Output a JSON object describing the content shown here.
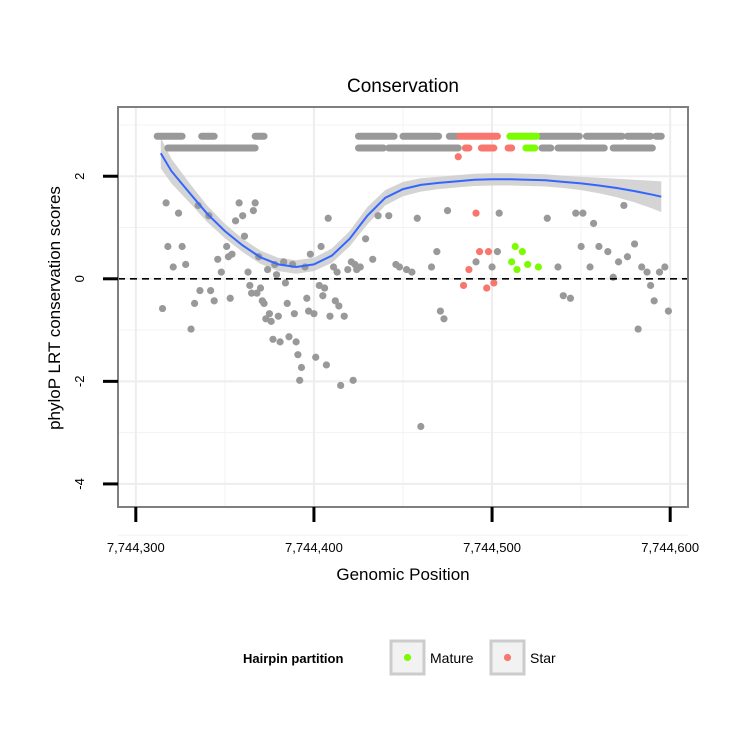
{
  "chart_data": {
    "type": "scatter",
    "title": "Conservation",
    "xlabel": "Genomic Position",
    "ylabel": "phyloP LRT conservation scores",
    "xlim": [
      7744290,
      7744610
    ],
    "ylim": [
      -4.45,
      3.35
    ],
    "x_ticks": [
      {
        "value": 7744300,
        "label": "7,744,300"
      },
      {
        "value": 7744400,
        "label": "7,744,400"
      },
      {
        "value": 7744500,
        "label": "7,744,500"
      },
      {
        "value": 7744600,
        "label": "7,744,600"
      }
    ],
    "y_ticks": [
      {
        "value": -4,
        "label": "-4"
      },
      {
        "value": -2,
        "label": "-2"
      },
      {
        "value": 0,
        "label": "0"
      },
      {
        "value": 2,
        "label": "2"
      }
    ],
    "grid": true,
    "reference_line": {
      "y": 0,
      "style": "dashed"
    },
    "legend": {
      "title": "Hairpin partition",
      "position": "bottom",
      "entries": [
        {
          "label": "Mature",
          "color": "#7CFC00"
        },
        {
          "label": "Star",
          "color": "#F8766D"
        }
      ]
    },
    "colors": {
      "other": "#999999",
      "mature": "#7CFC00",
      "star": "#F8766D",
      "smooth": "#3366FF",
      "ribbon": "#CCCCCC"
    },
    "bands": [
      {
        "name": "other",
        "y": 2.78,
        "x_ranges": [
          [
            7744312,
            7744326
          ],
          [
            7744337,
            7744344
          ],
          [
            7744367,
            7744372
          ],
          [
            7744425,
            7744445
          ],
          [
            7744450,
            7744470
          ],
          [
            7744476,
            7744481
          ],
          [
            7744527,
            7744549
          ],
          [
            7744553,
            7744573
          ],
          [
            7744576,
            7744589
          ],
          [
            7744592,
            7744595
          ]
        ]
      },
      {
        "name": "other",
        "y": 2.55,
        "x_ranges": [
          [
            7744318,
            7744367
          ],
          [
            7744425,
            7744439
          ],
          [
            7744442,
            7744481
          ],
          [
            7744528,
            7744533
          ],
          [
            7744537,
            7744563
          ],
          [
            7744568,
            7744590
          ]
        ]
      },
      {
        "name": "star",
        "y": 2.78,
        "x_ranges": [
          [
            7744482,
            7744503
          ]
        ]
      },
      {
        "name": "star",
        "y": 2.55,
        "x_ranges": [
          [
            7744485,
            7744487
          ],
          [
            7744494,
            7744501
          ],
          [
            7744509,
            7744511
          ]
        ]
      },
      {
        "name": "mature",
        "y": 2.78,
        "x_ranges": [
          [
            7744510,
            7744525
          ]
        ]
      },
      {
        "name": "mature",
        "y": 2.55,
        "x_ranges": [
          [
            7744519,
            7744524
          ]
        ]
      }
    ],
    "series": [
      {
        "name": "other",
        "points": [
          [
            7744317,
            1.48
          ],
          [
            7744318,
            0.63
          ],
          [
            7744315,
            -0.58
          ],
          [
            7744324,
            1.28
          ],
          [
            7744321,
            0.23
          ],
          [
            7744326,
            0.63
          ],
          [
            7744328,
            0.28
          ],
          [
            7744331,
            -0.98
          ],
          [
            7744333,
            -0.48
          ],
          [
            7744335,
            1.43
          ],
          [
            7744336,
            -0.23
          ],
          [
            7744341,
            1.23
          ],
          [
            7744342,
            -0.23
          ],
          [
            7744344,
            -0.43
          ],
          [
            7744346,
            0.38
          ],
          [
            7744348,
            0.13
          ],
          [
            7744351,
            0.63
          ],
          [
            7744352,
            0.43
          ],
          [
            7744354,
            0.48
          ],
          [
            7744353,
            -0.38
          ],
          [
            7744356,
            1.13
          ],
          [
            7744358,
            1.48
          ],
          [
            7744360,
            1.23
          ],
          [
            7744361,
            0.83
          ],
          [
            7744363,
            0.13
          ],
          [
            7744364,
            -0.13
          ],
          [
            7744365,
            -0.28
          ],
          [
            7744366,
            1.33
          ],
          [
            7744367,
            1.48
          ],
          [
            7744368,
            -0.28
          ],
          [
            7744369,
            0.43
          ],
          [
            7744370,
            -0.18
          ],
          [
            7744371,
            -0.43
          ],
          [
            7744372,
            -0.48
          ],
          [
            7744373,
            -0.78
          ],
          [
            7744374,
            0.18
          ],
          [
            7744375,
            -0.68
          ],
          [
            7744376,
            -0.83
          ],
          [
            7744377,
            -1.18
          ],
          [
            7744378,
            0.28
          ],
          [
            7744379,
            0.08
          ],
          [
            7744380,
            -0.73
          ],
          [
            7744381,
            -1.23
          ],
          [
            7744383,
            0.33
          ],
          [
            7744384,
            -0.08
          ],
          [
            7744385,
            -0.48
          ],
          [
            7744386,
            -1.13
          ],
          [
            7744388,
            0.28
          ],
          [
            7744389,
            -0.68
          ],
          [
            7744390,
            -1.23
          ],
          [
            7744391,
            -1.48
          ],
          [
            7744392,
            -1.98
          ],
          [
            7744393,
            -1.73
          ],
          [
            7744395,
            0.23
          ],
          [
            7744396,
            -0.38
          ],
          [
            7744397,
            -0.63
          ],
          [
            7744398,
            0.48
          ],
          [
            7744400,
            -0.68
          ],
          [
            7744401,
            -1.53
          ],
          [
            7744403,
            -0.13
          ],
          [
            7744404,
            0.63
          ],
          [
            7744405,
            -0.33
          ],
          [
            7744406,
            -0.18
          ],
          [
            7744407,
            -1.68
          ],
          [
            7744408,
            1.18
          ],
          [
            7744409,
            -0.73
          ],
          [
            7744411,
            0.23
          ],
          [
            7744412,
            -0.43
          ],
          [
            7744413,
            0.13
          ],
          [
            7744414,
            -0.53
          ],
          [
            7744415,
            -2.08
          ],
          [
            7744417,
            -0.73
          ],
          [
            7744419,
            0.18
          ],
          [
            7744421,
            0.33
          ],
          [
            7744422,
            -1.98
          ],
          [
            7744423,
            0.28
          ],
          [
            7744424,
            0.18
          ],
          [
            7744426,
            0.23
          ],
          [
            7744429,
            0.78
          ],
          [
            7744433,
            0.38
          ],
          [
            7744436,
            1.23
          ],
          [
            7744442,
            1.23
          ],
          [
            7744446,
            0.28
          ],
          [
            7744448,
            0.23
          ],
          [
            7744452,
            0.18
          ],
          [
            7744455,
            0.13
          ],
          [
            7744458,
            1.18
          ],
          [
            7744460,
            -2.88
          ],
          [
            7744466,
            0.23
          ],
          [
            7744469,
            0.53
          ],
          [
            7744471,
            -0.63
          ],
          [
            7744473,
            -0.78
          ],
          [
            7744475,
            1.33
          ],
          [
            7744491,
            0.33
          ],
          [
            7744500,
            0.23
          ],
          [
            7744503,
            0.53
          ],
          [
            7744504,
            1.28
          ],
          [
            7744531,
            1.18
          ],
          [
            7744537,
            0.23
          ],
          [
            7744540,
            -0.33
          ],
          [
            7744544,
            -0.38
          ],
          [
            7744547,
            1.28
          ],
          [
            7744550,
            0.63
          ],
          [
            7744551,
            1.28
          ],
          [
            7744555,
            0.23
          ],
          [
            7744557,
            1.08
          ],
          [
            7744560,
            0.63
          ],
          [
            7744565,
            0.53
          ],
          [
            7744568,
            0.03
          ],
          [
            7744571,
            0.33
          ],
          [
            7744574,
            1.43
          ],
          [
            7744576,
            0.43
          ],
          [
            7744580,
            0.68
          ],
          [
            7744582,
            -0.98
          ],
          [
            7744584,
            0.23
          ],
          [
            7744587,
            0.13
          ],
          [
            7744589,
            -0.13
          ],
          [
            7744591,
            -0.43
          ],
          [
            7744594,
            0.13
          ],
          [
            7744597,
            0.23
          ],
          [
            7744599,
            -0.63
          ]
        ]
      },
      {
        "name": "star",
        "points": [
          [
            7744481,
            2.38
          ],
          [
            7744484,
            -0.13
          ],
          [
            7744487,
            0.18
          ],
          [
            7744491,
            1.28
          ],
          [
            7744493,
            0.53
          ],
          [
            7744497,
            -0.18
          ],
          [
            7744498,
            0.53
          ],
          [
            7744501,
            -0.08
          ]
        ]
      },
      {
        "name": "mature",
        "points": [
          [
            7744511,
            0.33
          ],
          [
            7744513,
            0.63
          ],
          [
            7744514,
            0.18
          ],
          [
            7744517,
            0.53
          ],
          [
            7744520,
            0.28
          ],
          [
            7744526,
            0.23
          ]
        ]
      }
    ],
    "smooth": {
      "method": "loess",
      "x": [
        7744314,
        7744320,
        7744330,
        7744340,
        7744350,
        7744360,
        7744370,
        7744380,
        7744390,
        7744400,
        7744410,
        7744420,
        7744430,
        7744440,
        7744450,
        7744460,
        7744470,
        7744480,
        7744490,
        7744500,
        7744510,
        7744520,
        7744530,
        7744540,
        7744550,
        7744560,
        7744570,
        7744580,
        7744590,
        7744595
      ],
      "y": [
        2.45,
        2.1,
        1.68,
        1.27,
        0.93,
        0.65,
        0.42,
        0.28,
        0.23,
        0.28,
        0.45,
        0.78,
        1.23,
        1.58,
        1.75,
        1.83,
        1.87,
        1.9,
        1.93,
        1.94,
        1.94,
        1.93,
        1.92,
        1.89,
        1.86,
        1.82,
        1.77,
        1.71,
        1.64,
        1.6
      ],
      "band_halfwidth": [
        0.3,
        0.24,
        0.19,
        0.16,
        0.14,
        0.13,
        0.13,
        0.13,
        0.13,
        0.13,
        0.14,
        0.15,
        0.17,
        0.15,
        0.14,
        0.13,
        0.12,
        0.12,
        0.12,
        0.12,
        0.12,
        0.12,
        0.12,
        0.12,
        0.13,
        0.15,
        0.18,
        0.22,
        0.27,
        0.3
      ]
    }
  }
}
